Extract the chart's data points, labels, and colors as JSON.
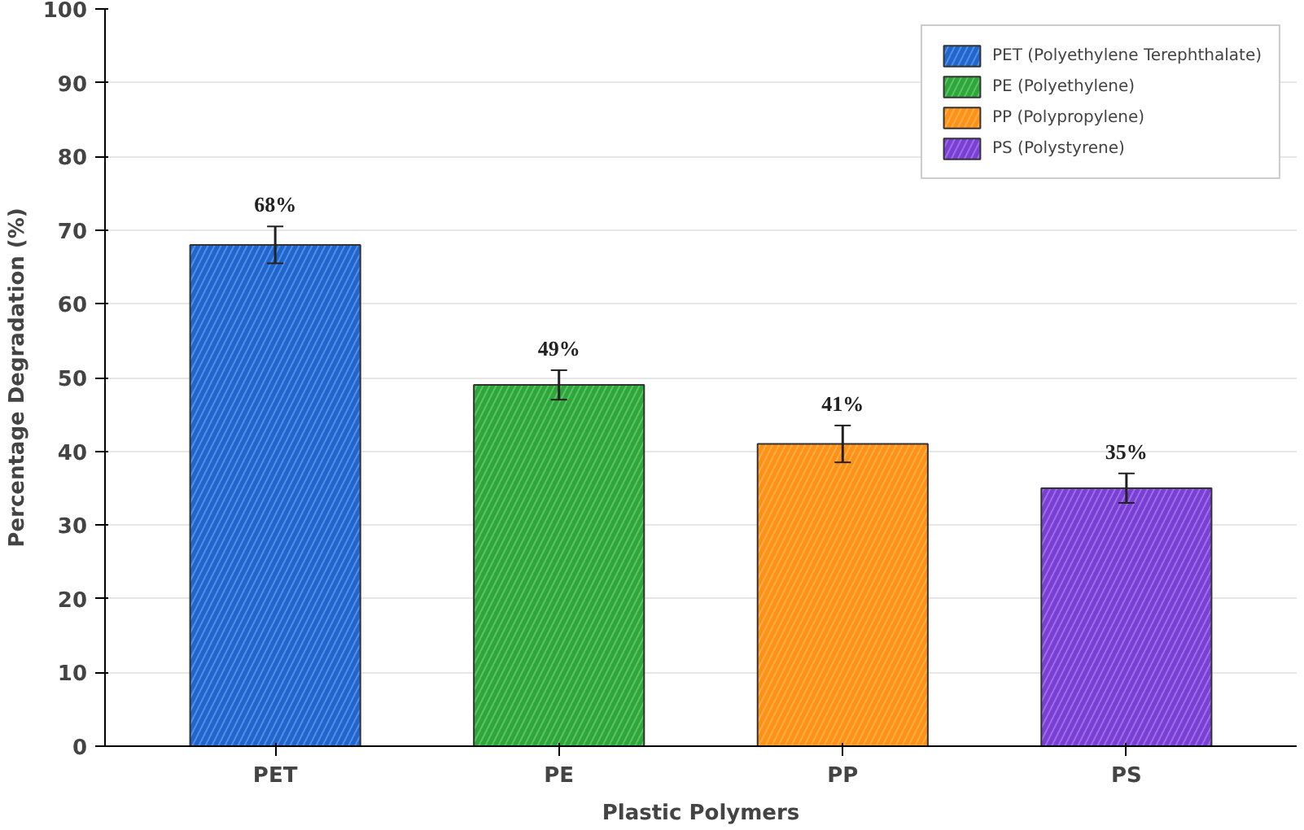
{
  "chart_data": {
    "type": "bar",
    "xlabel": "Plastic Polymers",
    "ylabel": "Percentage Degradation (%)",
    "categories": [
      "PET",
      "PE",
      "PP",
      "PS"
    ],
    "series": [
      {
        "name": "PET (Polyethylene Terephthalate)",
        "color": "#1f66d1",
        "values": [
          68,
          null,
          null,
          null
        ],
        "errors": [
          2.5,
          null,
          null,
          null
        ],
        "value_labels": [
          "68%",
          null,
          null,
          null
        ]
      },
      {
        "name": "PE (Polyethylene)",
        "color": "#2ca838",
        "values": [
          null,
          49,
          null,
          null
        ],
        "errors": [
          null,
          2,
          null,
          null
        ],
        "value_labels": [
          null,
          "49%",
          null,
          null
        ]
      },
      {
        "name": "PP (Polypropylene)",
        "color": "#ff9214",
        "values": [
          null,
          null,
          41,
          null
        ],
        "errors": [
          null,
          null,
          2.5,
          null
        ],
        "value_labels": [
          null,
          null,
          "41%",
          null
        ]
      },
      {
        "name": "PS (Polystyrene)",
        "color": "#7a3fd6",
        "values": [
          null,
          null,
          null,
          35
        ],
        "errors": [
          null,
          null,
          null,
          2
        ],
        "value_labels": [
          null,
          null,
          null,
          "35%"
        ]
      }
    ],
    "ylim": [
      0,
      100
    ],
    "yticks": [
      0,
      10,
      20,
      30,
      40,
      50,
      60,
      70,
      80,
      90,
      100
    ],
    "grid": "y",
    "legend": "top right"
  }
}
